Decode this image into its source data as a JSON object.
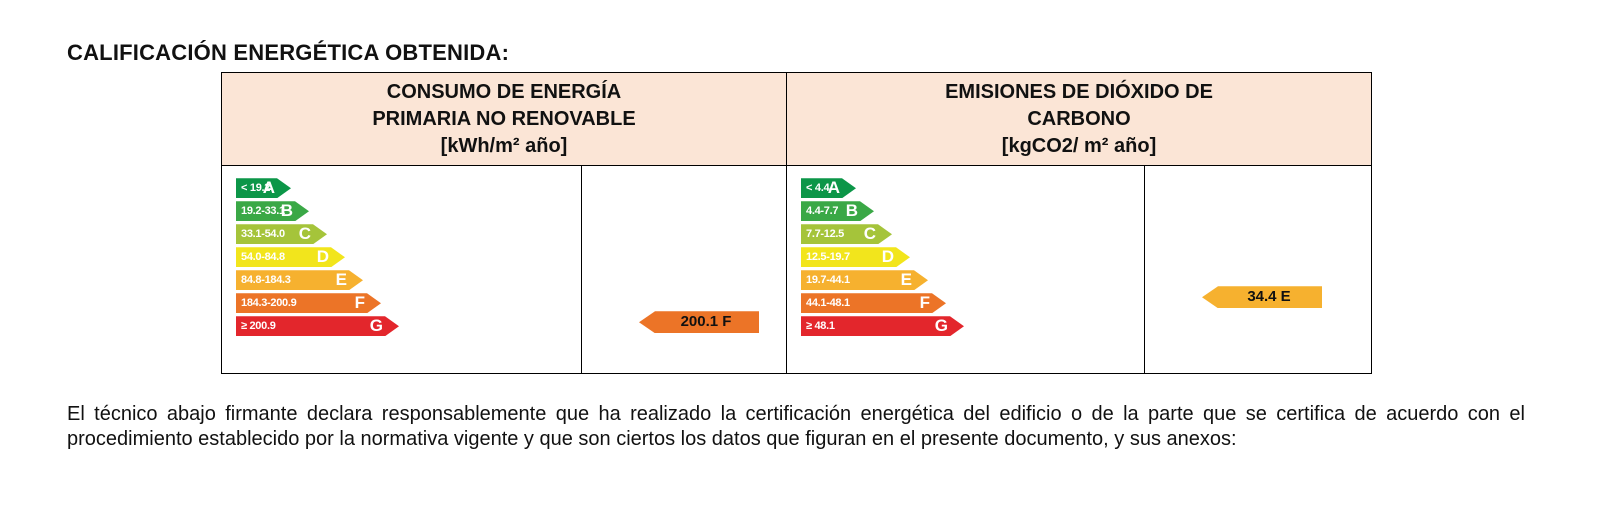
{
  "heading": "CALIFICACIÓN ENERGÉTICA OBTENIDA:",
  "columns": [
    {
      "title_lines": [
        "CONSUMO DE ENERGÍA",
        "PRIMARIA NO RENOVABLE",
        "[kWh/m² año]"
      ],
      "scale": [
        {
          "range": "< 19.2",
          "letter": "A",
          "color": "#0c9648"
        },
        {
          "range": "19.2-33.1",
          "letter": "B",
          "color": "#3aa846"
        },
        {
          "range": "33.1-54.0",
          "letter": "C",
          "color": "#a5c43a"
        },
        {
          "range": "54.0-84.8",
          "letter": "D",
          "color": "#f2e51c"
        },
        {
          "range": "84.8-184.3",
          "letter": "E",
          "color": "#f6b12f"
        },
        {
          "range": "184.3-200.9",
          "letter": "F",
          "color": "#ec7427"
        },
        {
          "range": "≥ 200.9",
          "letter": "G",
          "color": "#e3262c"
        }
      ],
      "result": {
        "label": "200.1 F",
        "color": "#ec7427",
        "rating_index": 5
      }
    },
    {
      "title_lines": [
        "EMISIONES DE DIÓXIDO DE",
        "CARBONO",
        "[kgCO2/ m² año]"
      ],
      "scale": [
        {
          "range": "< 4.4",
          "letter": "A",
          "color": "#0c9648"
        },
        {
          "range": "4.4-7.7",
          "letter": "B",
          "color": "#3aa846"
        },
        {
          "range": "7.7-12.5",
          "letter": "C",
          "color": "#a5c43a"
        },
        {
          "range": "12.5-19.7",
          "letter": "D",
          "color": "#f2e51c"
        },
        {
          "range": "19.7-44.1",
          "letter": "E",
          "color": "#f6b12f"
        },
        {
          "range": "44.1-48.1",
          "letter": "F",
          "color": "#ec7427"
        },
        {
          "range": "≥ 48.1",
          "letter": "G",
          "color": "#e3262c"
        }
      ],
      "result": {
        "label": "34.4 E",
        "color": "#f6b12f",
        "rating_index": 4
      }
    }
  ],
  "declaration": "El técnico abajo firmante declara responsablemente que ha realizado la certificación energética del edificio o de la parte que se certifica de acuerdo con el procedimiento establecido por la normativa vigente y que son ciertos los datos que figuran en el presente documento, y sus anexos:"
}
